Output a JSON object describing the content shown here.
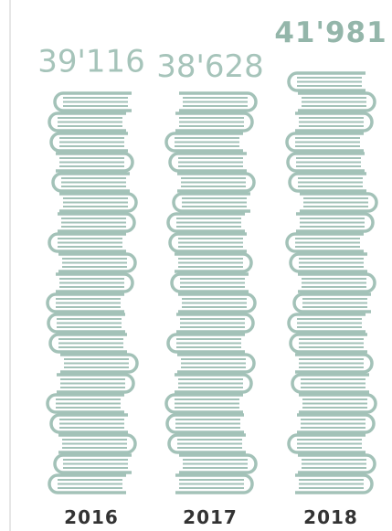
{
  "chart_data": {
    "type": "pictorial-bar",
    "categories": [
      "2016",
      "2017",
      "2018"
    ],
    "values": [
      39116,
      38628,
      41981
    ],
    "value_labels": [
      "39'116",
      "38'628",
      "41'981"
    ],
    "color": "#a3c2b8"
  }
}
